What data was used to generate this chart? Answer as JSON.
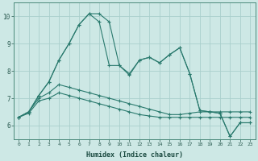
{
  "xlabel": "Humidex (Indice chaleur)",
  "xlim": [
    -0.5,
    23.5
  ],
  "ylim": [
    5.5,
    10.5
  ],
  "yticks": [
    6,
    7,
    8,
    9,
    10
  ],
  "xticks": [
    0,
    1,
    2,
    3,
    4,
    5,
    6,
    7,
    8,
    9,
    10,
    11,
    12,
    13,
    14,
    15,
    16,
    17,
    18,
    19,
    20,
    21,
    22,
    23
  ],
  "bg_color": "#cde8e5",
  "line_color": "#2a7a6e",
  "grid_color": "#aacfcc",
  "lines": [
    [
      6.3,
      6.5,
      7.1,
      7.6,
      8.4,
      9.0,
      9.7,
      10.1,
      10.1,
      9.8,
      8.2,
      7.9,
      8.4,
      8.5,
      8.3,
      8.6,
      8.85,
      7.9,
      6.55,
      6.5,
      6.45,
      5.6,
      6.1,
      6.1
    ],
    [
      6.3,
      6.5,
      7.1,
      7.6,
      8.4,
      9.0,
      9.7,
      10.1,
      9.8,
      8.2,
      8.2,
      7.85,
      8.4,
      8.5,
      8.3,
      8.6,
      8.85,
      7.9,
      6.55,
      6.5,
      6.45,
      5.6,
      6.1,
      6.1
    ],
    [
      6.3,
      6.5,
      7.0,
      7.2,
      7.5,
      7.4,
      7.3,
      7.2,
      7.1,
      7.0,
      6.9,
      6.8,
      6.7,
      6.6,
      6.5,
      6.4,
      6.4,
      6.45,
      6.5,
      6.5,
      6.5,
      6.5,
      6.5,
      6.5
    ],
    [
      6.3,
      6.45,
      6.9,
      7.0,
      7.2,
      7.1,
      7.0,
      6.9,
      6.8,
      6.7,
      6.6,
      6.5,
      6.4,
      6.35,
      6.3,
      6.3,
      6.3,
      6.3,
      6.3,
      6.3,
      6.3,
      6.3,
      6.3,
      6.3
    ]
  ]
}
